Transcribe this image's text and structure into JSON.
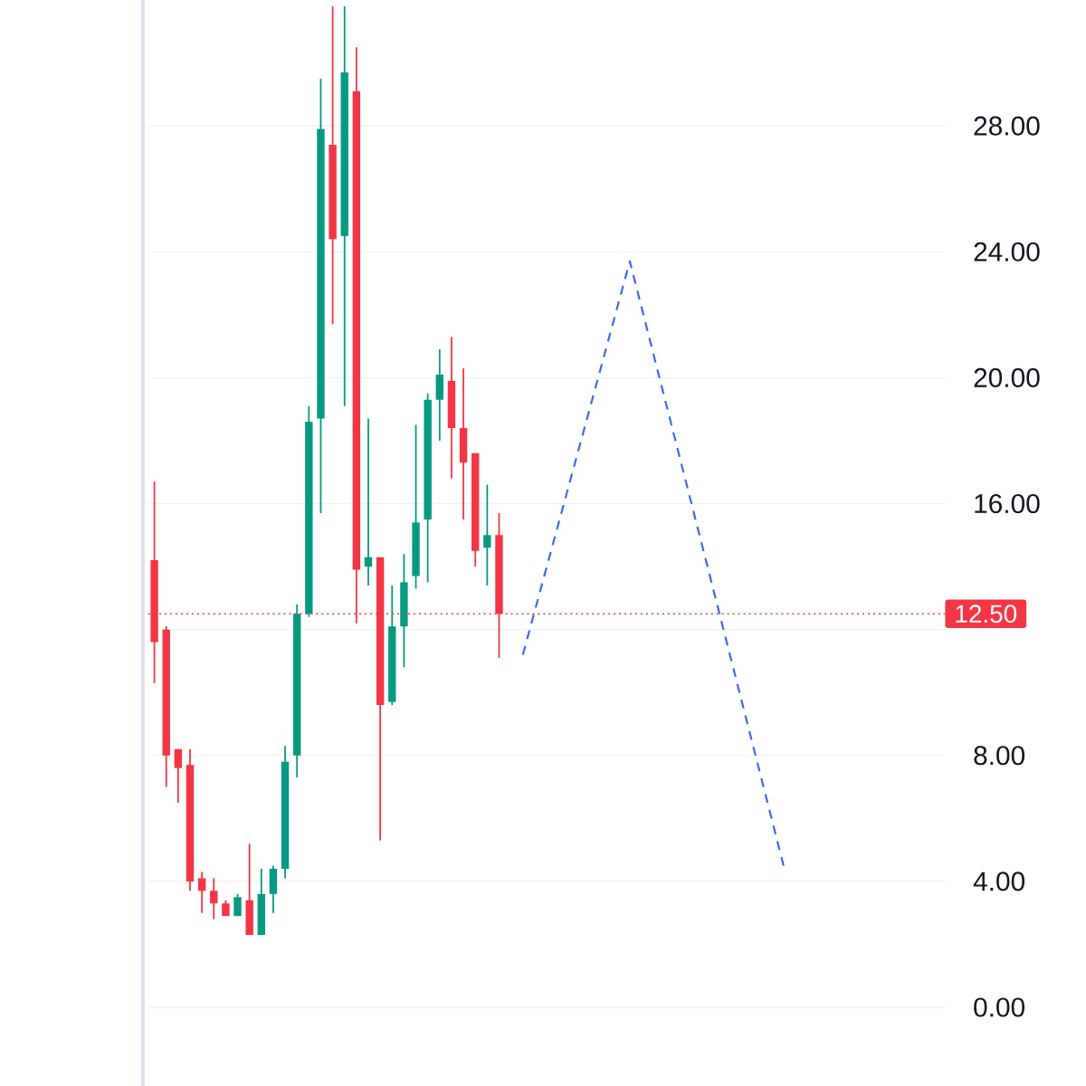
{
  "chart_data": {
    "type": "candlestick",
    "categories": [
      null,
      null,
      null,
      null,
      null,
      null,
      null,
      null,
      null,
      null,
      null,
      null,
      null,
      null,
      null,
      null,
      null,
      null,
      null,
      null,
      null,
      null,
      null,
      null,
      null,
      null,
      null,
      null,
      null,
      null,
      null,
      null,
      null,
      null,
      null,
      null,
      null,
      null,
      null,
      null,
      null,
      null,
      null,
      null,
      null,
      null,
      null,
      null,
      null,
      null,
      null,
      null,
      null,
      null,
      null,
      null,
      null,
      null,
      null,
      null,
      null,
      null,
      null,
      null,
      null,
      null,
      null
    ],
    "ohlc": [
      [
        14.2,
        16.7,
        10.3,
        11.6
      ],
      [
        12.0,
        12.1,
        7.0,
        8.0
      ],
      [
        8.2,
        8.2,
        6.5,
        7.6
      ],
      [
        7.7,
        8.2,
        3.7,
        4.0
      ],
      [
        4.1,
        4.3,
        3.0,
        3.7
      ],
      [
        3.7,
        4.1,
        2.8,
        3.3
      ],
      [
        3.3,
        3.4,
        2.9,
        2.9
      ],
      [
        2.9,
        3.6,
        2.9,
        3.5
      ],
      [
        3.4,
        5.2,
        2.3,
        2.3
      ],
      [
        2.3,
        4.4,
        2.3,
        3.6
      ],
      [
        3.6,
        4.5,
        3.0,
        4.4
      ],
      [
        4.4,
        8.3,
        4.1,
        7.8
      ],
      [
        8.0,
        12.8,
        7.3,
        12.5
      ],
      [
        12.5,
        19.1,
        12.4,
        18.6
      ],
      [
        18.7,
        29.5,
        15.7,
        27.9
      ],
      [
        27.4,
        31.8,
        21.7,
        24.4
      ],
      [
        24.5,
        31.8,
        19.1,
        29.7
      ],
      [
        29.1,
        30.5,
        12.2,
        13.9
      ],
      [
        14.0,
        18.7,
        13.4,
        14.3
      ],
      [
        14.3,
        14.3,
        5.3,
        9.6
      ],
      [
        9.7,
        13.4,
        9.6,
        12.1
      ],
      [
        12.1,
        14.4,
        10.8,
        13.5
      ],
      [
        13.7,
        18.5,
        13.3,
        15.4
      ],
      [
        15.5,
        19.5,
        13.5,
        19.3
      ],
      [
        19.3,
        20.9,
        18.0,
        20.1
      ],
      [
        19.9,
        21.3,
        16.8,
        18.4
      ],
      [
        18.4,
        20.3,
        15.5,
        17.3
      ],
      [
        17.6,
        17.6,
        14.0,
        14.5
      ],
      [
        14.6,
        16.6,
        13.4,
        15.0
      ],
      [
        15.0,
        15.7,
        11.1,
        12.5
      ],
      null,
      null,
      null,
      null,
      null,
      null,
      null,
      null,
      null,
      null,
      null,
      null,
      null,
      null,
      null,
      null,
      null,
      null,
      null,
      null,
      null,
      null,
      null,
      null,
      null,
      null,
      null,
      null,
      null,
      null,
      null,
      null,
      null,
      null,
      null,
      null,
      null
    ],
    "colors": [
      "#f23645",
      "#f23645",
      "#f23645",
      "#f23645",
      "#f23645",
      "#f23645",
      "#f23645",
      "#089981",
      "#f23645",
      "#089981",
      "#089981",
      "#089981",
      "#089981",
      "#089981",
      "#089981",
      "#f23645",
      "#089981",
      "#f23645",
      "#089981",
      "#f23645",
      "#089981",
      "#089981",
      "#089981",
      "#089981",
      "#089981",
      "#f23645",
      "#f23645",
      "#f23645",
      "#089981",
      "#f23645",
      null,
      null,
      null,
      null,
      null,
      null,
      null,
      null,
      null,
      null,
      null,
      null,
      null,
      null,
      null,
      null,
      null,
      null,
      null,
      null,
      null,
      null,
      null,
      null,
      null,
      null,
      null,
      null,
      null,
      null,
      null,
      null,
      null,
      null,
      null,
      null,
      null
    ],
    "series": [
      {
        "type": "line",
        "values": [
          null,
          null,
          null,
          null,
          null,
          null,
          null,
          null,
          null,
          null,
          null,
          null,
          null,
          null,
          null,
          null,
          null,
          null,
          null,
          null,
          null,
          null,
          null,
          null,
          null,
          null,
          null,
          null,
          null,
          null,
          null,
          11.2,
          null,
          null,
          null,
          null,
          null,
          null,
          null,
          null,
          23.7,
          null,
          null,
          null,
          null,
          null,
          null,
          null,
          null,
          null,
          null,
          null,
          null,
          4.4,
          null,
          null,
          null,
          null,
          null,
          null,
          null,
          null,
          null,
          null,
          null,
          null,
          null
        ],
        "color": "#3d6ae8",
        "line_style": "dashed"
      }
    ],
    "ylim": [
      -2.5,
      32.0
    ],
    "yticks": [
      {
        "value": 0,
        "label": "0.00"
      },
      {
        "value": 4,
        "label": "4.00"
      },
      {
        "value": 8,
        "label": "8.00"
      },
      {
        "value": 12,
        "label": null
      },
      {
        "value": 16,
        "label": "16.00"
      },
      {
        "value": 20,
        "label": "20.00"
      },
      {
        "value": 24,
        "label": "24.00"
      },
      {
        "value": 28,
        "label": "28.00"
      }
    ],
    "tick_labels": "y",
    "grid": "y",
    "ref_lines": [
      {
        "axis": "y",
        "value": 12.5,
        "label": "12.50",
        "color": "#f23645",
        "line_style": "dotted"
      }
    ]
  }
}
